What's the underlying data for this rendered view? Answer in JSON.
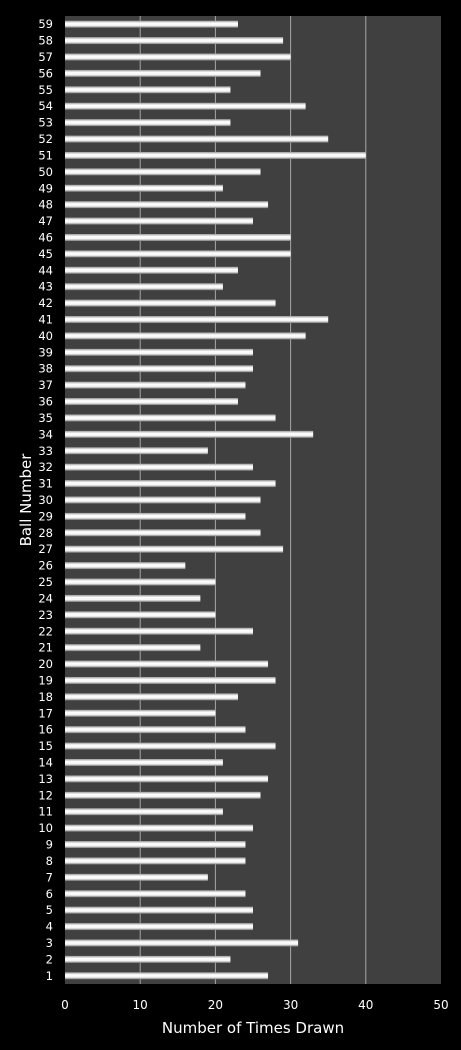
{
  "chart_data": {
    "type": "bar",
    "orientation": "horizontal",
    "title": "",
    "xlabel": "Number of Times Drawn",
    "ylabel": "Ball Number",
    "xlim": [
      0,
      50
    ],
    "x_ticks": [
      "0",
      "10",
      "20",
      "30",
      "40",
      "50"
    ],
    "grid": "vertical gridlines at every 10",
    "legend": "none",
    "colors": {
      "background": "#000000",
      "plot_area": "#404040",
      "bar": "#f2f2f2",
      "gridline": "#a6a6a6",
      "text": "#ffffff"
    },
    "categories": [
      "1",
      "2",
      "3",
      "4",
      "5",
      "6",
      "7",
      "8",
      "9",
      "10",
      "11",
      "12",
      "13",
      "14",
      "15",
      "16",
      "17",
      "18",
      "19",
      "20",
      "21",
      "22",
      "23",
      "24",
      "25",
      "26",
      "27",
      "28",
      "29",
      "30",
      "31",
      "32",
      "33",
      "34",
      "35",
      "36",
      "37",
      "38",
      "39",
      "40",
      "41",
      "42",
      "43",
      "44",
      "45",
      "46",
      "47",
      "48",
      "49",
      "50",
      "51",
      "52",
      "53",
      "54",
      "55",
      "56",
      "57",
      "58",
      "59"
    ],
    "values": [
      27,
      22,
      31,
      25,
      25,
      24,
      19,
      24,
      24,
      25,
      21,
      26,
      27,
      21,
      28,
      24,
      20,
      23,
      28,
      27,
      18,
      25,
      20,
      18,
      20,
      16,
      29,
      26,
      24,
      26,
      28,
      25,
      19,
      33,
      28,
      23,
      24,
      25,
      25,
      32,
      35,
      28,
      21,
      23,
      30,
      30,
      25,
      27,
      21,
      26,
      40,
      35,
      22,
      32,
      22,
      26,
      30,
      29,
      23
    ]
  }
}
